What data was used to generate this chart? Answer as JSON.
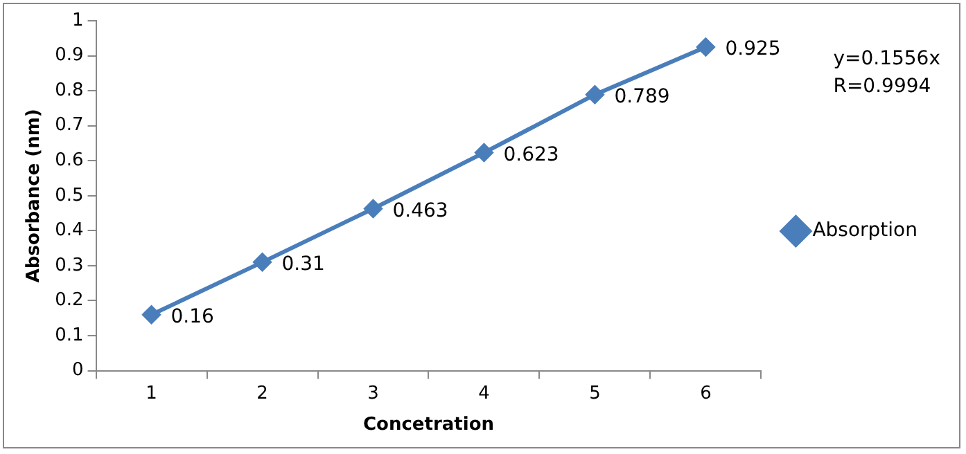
{
  "chart_data": {
    "type": "line",
    "xlabel": "Concetration",
    "ylabel": "Absorbance (nm)",
    "categories": [
      "1",
      "2",
      "3",
      "4",
      "5",
      "6"
    ],
    "series": [
      {
        "name": "Absorption",
        "color": "#4a7ebb",
        "values": [
          0.16,
          0.31,
          0.463,
          0.623,
          0.789,
          0.925
        ]
      }
    ],
    "ylim": [
      0,
      1
    ],
    "yticks": [
      0,
      0.1,
      0.2,
      0.3,
      0.4,
      0.5,
      0.6,
      0.7,
      0.8,
      0.9,
      1
    ],
    "grid": false,
    "legend": "right",
    "marker": "diamond",
    "line_style": "solid",
    "data_labels": true,
    "annotations": [
      "y=0.1556x",
      "R=0.9994"
    ]
  }
}
